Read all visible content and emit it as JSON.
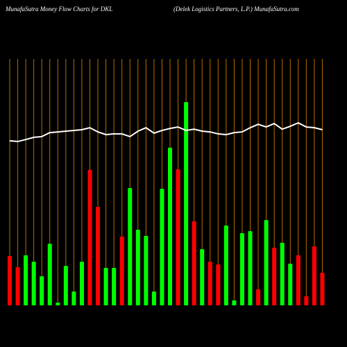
{
  "chart_data": {
    "type": "bar",
    "title": "MunafaSutra  Money Flow  Charts for DKL",
    "subtitle": "(Delek Logistics Partners,  L.P.) MunafaSutra.com",
    "ylim": [
      0,
      100
    ],
    "grid_color": "#b86e00",
    "values": [
      20,
      15.5,
      20.3,
      17.7,
      11.8,
      25,
      1.1,
      16,
      5.6,
      17.7,
      55,
      40,
      15.2,
      15.2,
      27.9,
      47.6,
      30.7,
      28.2,
      5.6,
      47.3,
      64,
      55.2,
      82.5,
      34.1,
      22.8,
      17.7,
      16.6,
      32.4,
      2,
      29.3,
      30.1,
      6.5,
      34.6,
      23.4,
      25.4,
      16.9,
      20.3,
      3.7,
      23.9,
      13.2
    ],
    "colors": [
      "#ff0000",
      "#ff0000",
      "#00ff00",
      "#00ff00",
      "#00ff00",
      "#00ff00",
      "#00ff00",
      "#00ff00",
      "#00ff00",
      "#00ff00",
      "#ff0000",
      "#ff0000",
      "#00ff00",
      "#00ff00",
      "#ff0000",
      "#00ff00",
      "#00ff00",
      "#00ff00",
      "#00ff00",
      "#00ff00",
      "#00ff00",
      "#ff0000",
      "#00ff00",
      "#ff0000",
      "#00ff00",
      "#ff0000",
      "#ff0000",
      "#00ff00",
      "#00ff00",
      "#00ff00",
      "#00ff00",
      "#ff0000",
      "#00ff00",
      "#ff0000",
      "#00ff00",
      "#00ff00",
      "#ff0000",
      "#ff0000",
      "#ff0000",
      "#ff0000"
    ],
    "line": {
      "color": "#ffffff",
      "values": [
        66.8,
        66.5,
        67.3,
        68.2,
        68.5,
        70.1,
        70.4,
        70.7,
        71.0,
        71.3,
        72.1,
        70.4,
        69.3,
        69.6,
        69.6,
        68.5,
        70.7,
        72.1,
        69.9,
        71.0,
        71.8,
        72.4,
        71.0,
        71.5,
        70.7,
        70.4,
        69.6,
        69.3,
        70.1,
        70.4,
        72.1,
        73.5,
        72.4,
        73.8,
        71.5,
        72.7,
        74.1,
        72.4,
        72.1,
        71.3
      ]
    }
  }
}
